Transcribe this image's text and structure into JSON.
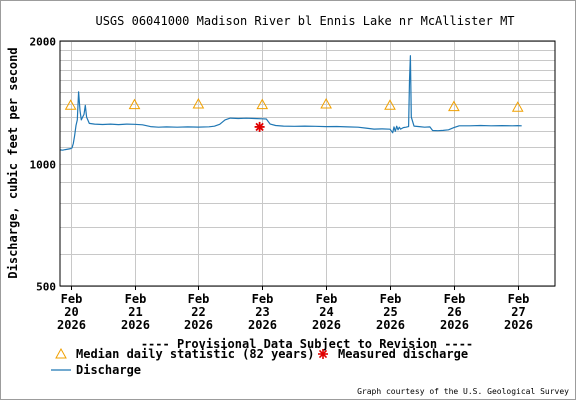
{
  "chart_data": {
    "type": "line",
    "title": "USGS 06041000 Madison River bl Ennis Lake nr McAllister MT",
    "ylabel": "Discharge, cubic feet per second",
    "xlabel": "",
    "y_scale": "log",
    "ylim": [
      500,
      2000
    ],
    "y_ticks": [
      {
        "value": 500,
        "label": "500"
      },
      {
        "value": 1000,
        "label": "1000"
      },
      {
        "value": 2000,
        "label": "2000"
      }
    ],
    "y_grid_values": [
      600,
      700,
      800,
      900,
      1100,
      1200,
      1300,
      1400,
      1500,
      1600,
      1700,
      1800,
      1900
    ],
    "x_range": [
      "2026-02-19T20:00",
      "2026-02-27T14:00"
    ],
    "x_ticks": [
      {
        "t": "2026-02-20T00:00",
        "lines": [
          "Feb",
          "20",
          "2026"
        ]
      },
      {
        "t": "2026-02-21T00:00",
        "lines": [
          "Feb",
          "21",
          "2026"
        ]
      },
      {
        "t": "2026-02-22T00:00",
        "lines": [
          "Feb",
          "22",
          "2026"
        ]
      },
      {
        "t": "2026-02-23T00:00",
        "lines": [
          "Feb",
          "23",
          "2026"
        ]
      },
      {
        "t": "2026-02-24T00:00",
        "lines": [
          "Feb",
          "24",
          "2026"
        ]
      },
      {
        "t": "2026-02-25T00:00",
        "lines": [
          "Feb",
          "25",
          "2026"
        ]
      },
      {
        "t": "2026-02-26T00:00",
        "lines": [
          "Feb",
          "26",
          "2026"
        ]
      },
      {
        "t": "2026-02-27T00:00",
        "lines": [
          "Feb",
          "27",
          "2026"
        ]
      }
    ],
    "grid": true,
    "series": [
      {
        "name": "Discharge",
        "kind": "line",
        "color": "#1f77b4",
        "points": [
          [
            "2026-02-19T20:00",
            1080
          ],
          [
            "2026-02-19T21:00",
            1078
          ],
          [
            "2026-02-19T22:00",
            1082
          ],
          [
            "2026-02-19T23:00",
            1085
          ],
          [
            "2026-02-20T00:00",
            1088
          ],
          [
            "2026-02-20T00:30",
            1092
          ],
          [
            "2026-02-20T01:00",
            1120
          ],
          [
            "2026-02-20T01:30",
            1170
          ],
          [
            "2026-02-20T02:00",
            1240
          ],
          [
            "2026-02-20T02:30",
            1280
          ],
          [
            "2026-02-20T03:00",
            1500
          ],
          [
            "2026-02-20T03:30",
            1350
          ],
          [
            "2026-02-20T04:00",
            1280
          ],
          [
            "2026-02-20T04:30",
            1300
          ],
          [
            "2026-02-20T05:00",
            1320
          ],
          [
            "2026-02-20T05:30",
            1390
          ],
          [
            "2026-02-20T06:00",
            1300
          ],
          [
            "2026-02-20T07:00",
            1255
          ],
          [
            "2026-02-20T09:00",
            1250
          ],
          [
            "2026-02-20T12:00",
            1247
          ],
          [
            "2026-02-20T15:00",
            1250
          ],
          [
            "2026-02-20T18:00",
            1246
          ],
          [
            "2026-02-20T21:00",
            1250
          ],
          [
            "2026-02-21T00:00",
            1248
          ],
          [
            "2026-02-21T03:00",
            1245
          ],
          [
            "2026-02-21T06:00",
            1232
          ],
          [
            "2026-02-21T09:00",
            1228
          ],
          [
            "2026-02-21T12:00",
            1230
          ],
          [
            "2026-02-21T16:00",
            1228
          ],
          [
            "2026-02-21T20:00",
            1230
          ],
          [
            "2026-02-22T00:00",
            1229
          ],
          [
            "2026-02-22T04:00",
            1231
          ],
          [
            "2026-02-22T06:00",
            1235
          ],
          [
            "2026-02-22T08:00",
            1248
          ],
          [
            "2026-02-22T10:00",
            1280
          ],
          [
            "2026-02-22T12:00",
            1293
          ],
          [
            "2026-02-22T15:00",
            1290
          ],
          [
            "2026-02-22T18:00",
            1292
          ],
          [
            "2026-02-22T21:00",
            1290
          ],
          [
            "2026-02-23T00:00",
            1288
          ],
          [
            "2026-02-23T01:30",
            1286
          ],
          [
            "2026-02-23T03:00",
            1250
          ],
          [
            "2026-02-23T05:00",
            1240
          ],
          [
            "2026-02-23T08:00",
            1236
          ],
          [
            "2026-02-23T12:00",
            1234
          ],
          [
            "2026-02-23T16:00",
            1236
          ],
          [
            "2026-02-23T20:00",
            1234
          ],
          [
            "2026-02-24T00:00",
            1232
          ],
          [
            "2026-02-24T04:00",
            1233
          ],
          [
            "2026-02-24T08:00",
            1230
          ],
          [
            "2026-02-24T12:00",
            1228
          ],
          [
            "2026-02-24T15:00",
            1222
          ],
          [
            "2026-02-24T18:00",
            1215
          ],
          [
            "2026-02-24T21:00",
            1216
          ],
          [
            "2026-02-25T00:00",
            1214
          ],
          [
            "2026-02-25T01:00",
            1190
          ],
          [
            "2026-02-25T01:30",
            1230
          ],
          [
            "2026-02-25T02:00",
            1200
          ],
          [
            "2026-02-25T02:30",
            1235
          ],
          [
            "2026-02-25T03:00",
            1210
          ],
          [
            "2026-02-25T03:30",
            1228
          ],
          [
            "2026-02-25T04:00",
            1215
          ],
          [
            "2026-02-25T05:00",
            1225
          ],
          [
            "2026-02-25T06:00",
            1228
          ],
          [
            "2026-02-25T07:00",
            1232
          ],
          [
            "2026-02-25T07:20",
            1600
          ],
          [
            "2026-02-25T07:40",
            1840
          ],
          [
            "2026-02-25T08:00",
            1300
          ],
          [
            "2026-02-25T09:00",
            1236
          ],
          [
            "2026-02-25T11:00",
            1232
          ],
          [
            "2026-02-25T13:00",
            1228
          ],
          [
            "2026-02-25T15:00",
            1230
          ],
          [
            "2026-02-25T16:00",
            1205
          ],
          [
            "2026-02-25T18:00",
            1204
          ],
          [
            "2026-02-25T20:00",
            1206
          ],
          [
            "2026-02-25T22:00",
            1210
          ],
          [
            "2026-02-26T00:00",
            1225
          ],
          [
            "2026-02-26T02:00",
            1238
          ],
          [
            "2026-02-26T06:00",
            1238
          ],
          [
            "2026-02-26T10:00",
            1240
          ],
          [
            "2026-02-26T14:00",
            1238
          ],
          [
            "2026-02-26T18:00",
            1239
          ],
          [
            "2026-02-26T22:00",
            1238
          ],
          [
            "2026-02-27T00:00",
            1239
          ],
          [
            "2026-02-27T01:30",
            1238
          ]
        ]
      },
      {
        "name": "Median daily statistic (82 years)",
        "kind": "marker",
        "marker": "triangle",
        "color": "#f0a000",
        "points": [
          [
            "2026-02-20T00:00",
            1390
          ],
          [
            "2026-02-21T00:00",
            1395
          ],
          [
            "2026-02-22T00:00",
            1400
          ],
          [
            "2026-02-23T00:00",
            1395
          ],
          [
            "2026-02-24T00:00",
            1400
          ],
          [
            "2026-02-25T00:00",
            1390
          ],
          [
            "2026-02-26T00:00",
            1380
          ],
          [
            "2026-02-27T00:00",
            1375
          ]
        ]
      },
      {
        "name": "Measured discharge",
        "kind": "marker",
        "marker": "asterisk",
        "color": "#e00000",
        "points": [
          [
            "2026-02-22T23:00",
            1230
          ]
        ]
      }
    ],
    "legend": {
      "position": "bottom",
      "items": [
        {
          "label": "Median daily statistic (82 years)",
          "symbol": "triangle",
          "color": "#f0a000"
        },
        {
          "label": "Measured discharge",
          "symbol": "asterisk",
          "color": "#e00000"
        },
        {
          "label": "Discharge",
          "symbol": "line",
          "color": "#1f77b4"
        }
      ]
    },
    "annotations": {
      "provisional": "---- Provisional Data Subject to Revision ----",
      "provisional_color": "#cc0000",
      "credit": "Graph courtesy of the U.S. Geological Survey"
    }
  }
}
